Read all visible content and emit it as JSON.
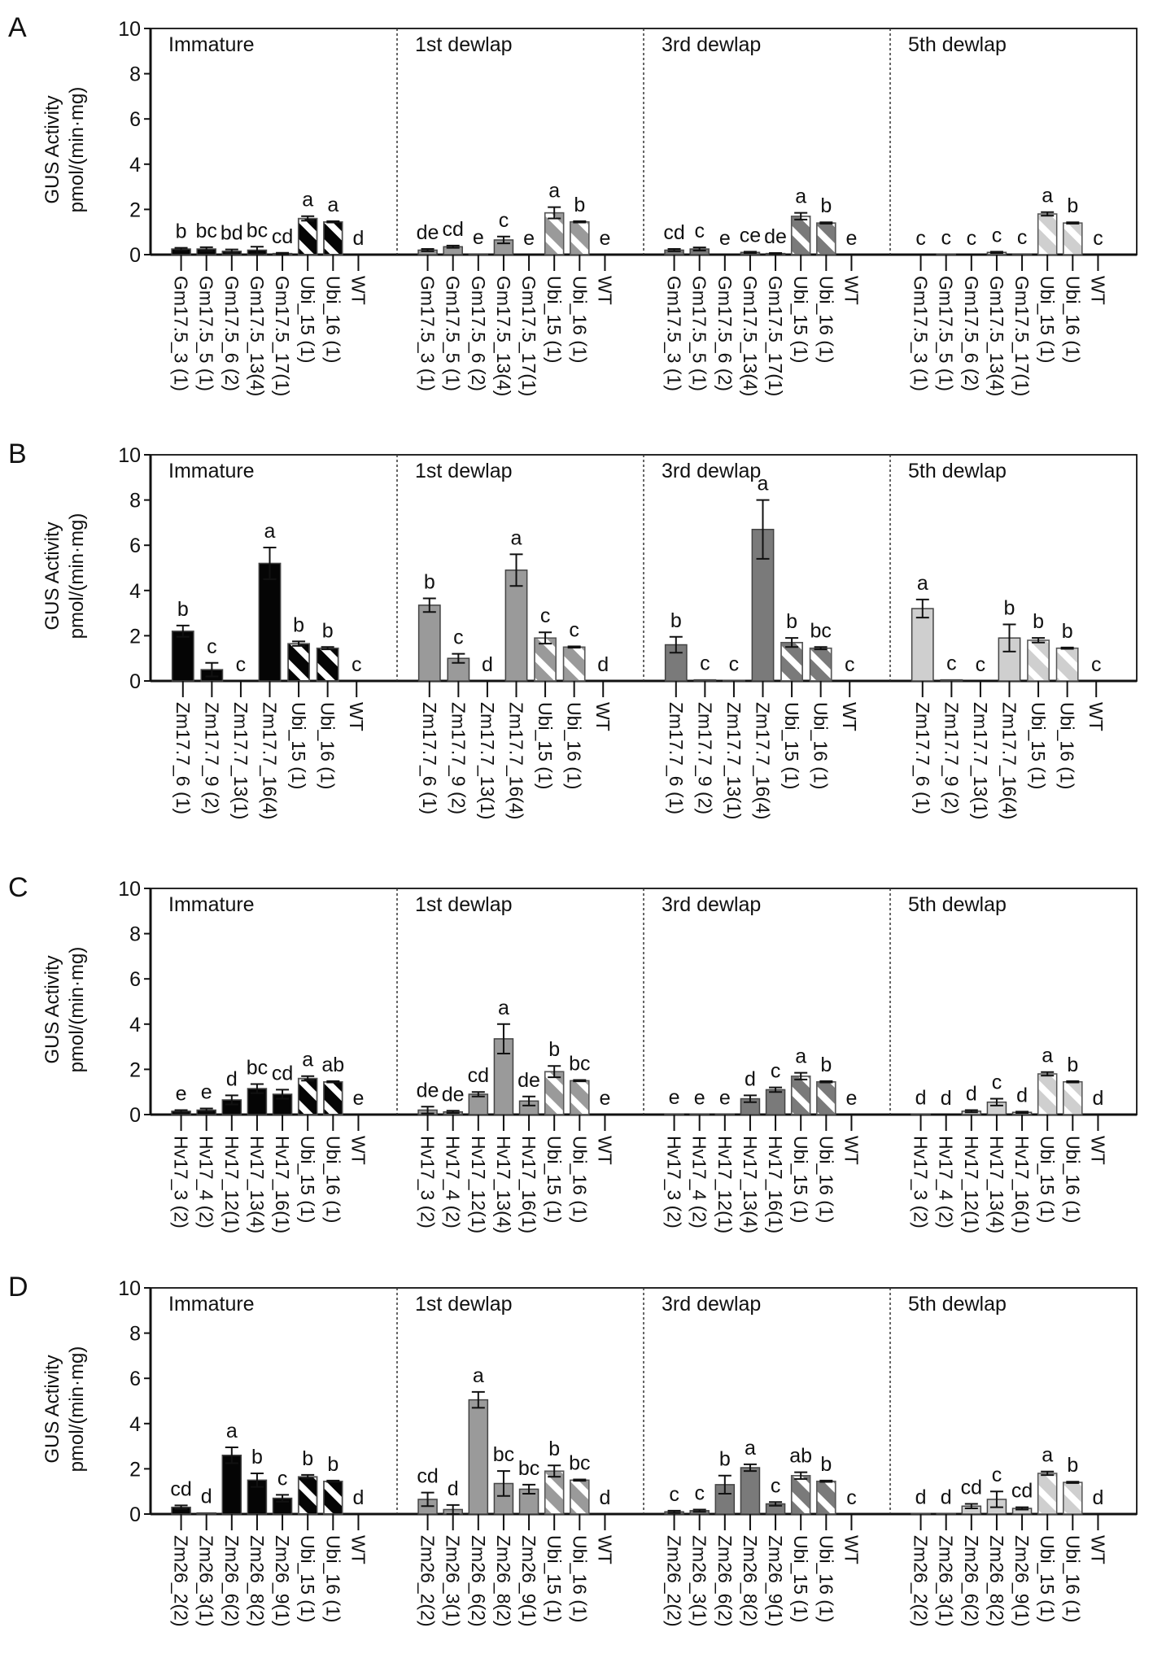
{
  "colors": {
    "Immature": "#050505",
    "1st dewlap": "#9a9a9a",
    "3rd dewlap": "#7a7a7a",
    "5th dewlap": "#cfcfcf",
    "hatch": "#ffffff",
    "ubi_outline": "#555555"
  },
  "chart_data": [
    {
      "type": "bar",
      "panel": "A",
      "ylabel": [
        "GUS Activity",
        "pmol/(min·mg)"
      ],
      "ylim": [
        0,
        10
      ],
      "yticks": [
        0,
        2,
        4,
        6,
        8,
        10
      ],
      "categories": [
        "Gm17.5_3 (1)",
        "Gm17.5_5 (1)",
        "Gm17.5_6 (2)",
        "Gm17.5_13(4)",
        "Gm17.5_17(1)",
        "Ubi_15 (1)",
        "Ubi_16 (1)",
        "WT"
      ],
      "groups": [
        {
          "name": "Immature",
          "values": [
            0.25,
            0.25,
            0.15,
            0.2,
            0.05,
            1.6,
            1.45,
            0
          ],
          "errors": [
            0.05,
            0.08,
            0.08,
            0.15,
            0.03,
            0.1,
            0.03,
            0
          ],
          "letters": [
            "b",
            "bc",
            "bd",
            "bc",
            "cd",
            "a",
            "a",
            "d"
          ]
        },
        {
          "name": "1st dewlap",
          "values": [
            0.2,
            0.35,
            0.03,
            0.65,
            0,
            1.85,
            1.45,
            0
          ],
          "errors": [
            0.05,
            0.05,
            0,
            0.15,
            0,
            0.25,
            0.03,
            0
          ],
          "letters": [
            "de",
            "cd",
            "e",
            "c",
            "e",
            "a",
            "b",
            "e"
          ]
        },
        {
          "name": "3rd dewlap",
          "values": [
            0.2,
            0.25,
            0,
            0.1,
            0.05,
            1.7,
            1.4,
            0
          ],
          "errors": [
            0.05,
            0.07,
            0,
            0.03,
            0.02,
            0.15,
            0.03,
            0
          ],
          "letters": [
            "cd",
            "c",
            "e",
            "ce",
            "de",
            "a",
            "b",
            "e"
          ]
        },
        {
          "name": "5th dewlap",
          "values": [
            0,
            0.02,
            0,
            0.1,
            0.03,
            1.8,
            1.4,
            0
          ],
          "errors": [
            0,
            0,
            0,
            0.03,
            0,
            0.08,
            0.03,
            0
          ],
          "letters": [
            "c",
            "c",
            "c",
            "c",
            "c",
            "a",
            "b",
            "c"
          ]
        }
      ]
    },
    {
      "type": "bar",
      "panel": "B",
      "ylabel": [
        "GUS Activity",
        "pmol/(min·mg)"
      ],
      "ylim": [
        0,
        10
      ],
      "yticks": [
        0,
        2,
        4,
        6,
        8,
        10
      ],
      "categories": [
        "Zm17.7_6 (1)",
        "Zm17.7_9 (2)",
        "Zm17.7_13(1)",
        "Zm17.7_16(4)",
        "Ubi_15 (1)",
        "Ubi_16 (1)",
        "WT"
      ],
      "groups": [
        {
          "name": "Immature",
          "values": [
            2.2,
            0.5,
            0,
            5.2,
            1.65,
            1.45,
            0
          ],
          "errors": [
            0.25,
            0.3,
            0,
            0.7,
            0.1,
            0.05,
            0
          ],
          "letters": [
            "b",
            "c",
            "c",
            "a",
            "b",
            "b",
            "c"
          ]
        },
        {
          "name": "1st dewlap",
          "values": [
            3.35,
            1.0,
            0,
            4.9,
            1.9,
            1.5,
            0
          ],
          "errors": [
            0.3,
            0.2,
            0,
            0.7,
            0.25,
            0.03,
            0
          ],
          "letters": [
            "b",
            "c",
            "d",
            "a",
            "c",
            "c",
            "d"
          ]
        },
        {
          "name": "3rd dewlap",
          "values": [
            1.6,
            0.05,
            0.02,
            6.7,
            1.7,
            1.45,
            0
          ],
          "errors": [
            0.35,
            0,
            0,
            1.3,
            0.2,
            0.05,
            0
          ],
          "letters": [
            "b",
            "c",
            "c",
            "a",
            "b",
            "bc",
            "c"
          ]
        },
        {
          "name": "5th dewlap",
          "values": [
            3.2,
            0.05,
            0,
            1.9,
            1.8,
            1.45,
            0
          ],
          "errors": [
            0.4,
            0,
            0,
            0.6,
            0.1,
            0.03,
            0
          ],
          "letters": [
            "a",
            "c",
            "c",
            "b",
            "b",
            "b",
            "c"
          ]
        }
      ]
    },
    {
      "type": "bar",
      "panel": "C",
      "ylabel": [
        "GUS Activity",
        "pmol/(min·mg)"
      ],
      "ylim": [
        0,
        10
      ],
      "yticks": [
        0,
        2,
        4,
        6,
        8,
        10
      ],
      "categories": [
        "Hv17_3 (2)",
        "Hv17_4 (2)",
        "Hv17_12(1)",
        "Hv17_13(4)",
        "Hv17_16(1)",
        "Ubi_15 (1)",
        "Ubi_16 (1)",
        "WT"
      ],
      "groups": [
        {
          "name": "Immature",
          "values": [
            0.15,
            0.2,
            0.65,
            1.15,
            0.9,
            1.6,
            1.45,
            0
          ],
          "errors": [
            0.05,
            0.07,
            0.2,
            0.2,
            0.2,
            0.1,
            0.03,
            0
          ],
          "letters": [
            "e",
            "e",
            "d",
            "bc",
            "cd",
            "a",
            "ab",
            "e"
          ]
        },
        {
          "name": "1st dewlap",
          "values": [
            0.2,
            0.12,
            0.9,
            3.35,
            0.6,
            1.9,
            1.5,
            0
          ],
          "errors": [
            0.15,
            0.05,
            0.1,
            0.65,
            0.2,
            0.25,
            0.03,
            0
          ],
          "letters": [
            "de",
            "de",
            "cd",
            "a",
            "de",
            "b",
            "bc",
            "e"
          ]
        },
        {
          "name": "3rd dewlap",
          "values": [
            0.03,
            0.02,
            0.02,
            0.7,
            1.1,
            1.7,
            1.45,
            0
          ],
          "errors": [
            0,
            0,
            0,
            0.15,
            0.1,
            0.15,
            0.03,
            0
          ],
          "letters": [
            "e",
            "e",
            "e",
            "d",
            "c",
            "a",
            "b",
            "e"
          ]
        },
        {
          "name": "5th dewlap",
          "values": [
            0.02,
            0,
            0.15,
            0.55,
            0.1,
            1.8,
            1.45,
            0
          ],
          "errors": [
            0,
            0,
            0.05,
            0.15,
            0.03,
            0.08,
            0.03,
            0
          ],
          "letters": [
            "d",
            "d",
            "d",
            "c",
            "d",
            "a",
            "b",
            "d"
          ]
        }
      ]
    },
    {
      "type": "bar",
      "panel": "D",
      "ylabel": [
        "GUS Activity",
        "pmol/(min·mg)"
      ],
      "ylim": [
        0,
        10
      ],
      "yticks": [
        0,
        2,
        4,
        6,
        8,
        10
      ],
      "categories": [
        "Zm26_2(2)",
        "Zm26_3(1)",
        "Zm26_6(2)",
        "Zm26_8(2)",
        "Zm26_9(1)",
        "Ubi_15 (1)",
        "Ubi_16 (1)",
        "WT"
      ],
      "groups": [
        {
          "name": "Immature",
          "values": [
            0.3,
            0.05,
            2.6,
            1.5,
            0.7,
            1.65,
            1.45,
            0
          ],
          "errors": [
            0.08,
            0,
            0.35,
            0.3,
            0.15,
            0.08,
            0.03,
            0
          ],
          "letters": [
            "cd",
            "d",
            "a",
            "b",
            "c",
            "b",
            "b",
            "d"
          ]
        },
        {
          "name": "1st dewlap",
          "values": [
            0.65,
            0.2,
            5.05,
            1.35,
            1.1,
            1.9,
            1.5,
            0
          ],
          "errors": [
            0.3,
            0.2,
            0.35,
            0.55,
            0.2,
            0.25,
            0.03,
            0
          ],
          "letters": [
            "cd",
            "d",
            "a",
            "bc",
            "bc",
            "b",
            "bc",
            "d"
          ]
        },
        {
          "name": "3rd dewlap",
          "values": [
            0.1,
            0.15,
            1.3,
            2.05,
            0.45,
            1.7,
            1.45,
            0
          ],
          "errors": [
            0.05,
            0.05,
            0.4,
            0.15,
            0.08,
            0.15,
            0.03,
            0
          ],
          "letters": [
            "c",
            "c",
            "b",
            "a",
            "c",
            "ab",
            "b",
            "c"
          ]
        },
        {
          "name": "5th dewlap",
          "values": [
            0.02,
            0.02,
            0.35,
            0.65,
            0.25,
            1.8,
            1.4,
            0
          ],
          "errors": [
            0,
            0,
            0.1,
            0.35,
            0.05,
            0.08,
            0.03,
            0
          ],
          "letters": [
            "d",
            "d",
            "cd",
            "c",
            "cd",
            "a",
            "b",
            "d"
          ]
        }
      ]
    }
  ]
}
